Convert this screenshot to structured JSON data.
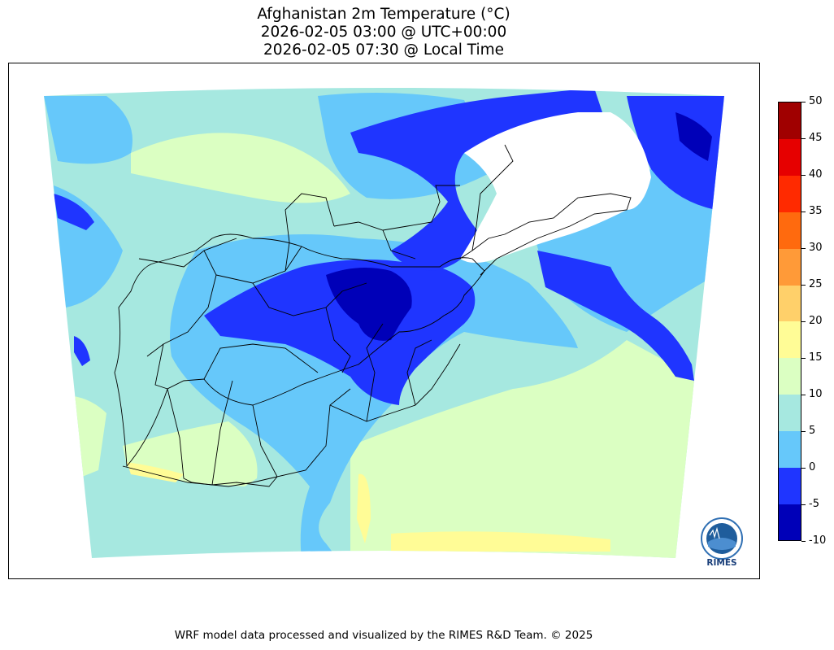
{
  "title": {
    "line1": "Afghanistan 2m Temperature (°C)",
    "line2": "2026-02-05 03:00 @ UTC+00:00",
    "line3": "2026-02-05 07:30 @ Local Time"
  },
  "colorbar": {
    "bins": [
      {
        "from": -10,
        "to": -5,
        "color": "#0000b8"
      },
      {
        "from": -5,
        "to": 0,
        "color": "#1f35ff"
      },
      {
        "from": 0,
        "to": 5,
        "color": "#66c8fa"
      },
      {
        "from": 5,
        "to": 10,
        "color": "#a6e8e0"
      },
      {
        "from": 10,
        "to": 15,
        "color": "#dbffc2"
      },
      {
        "from": 15,
        "to": 20,
        "color": "#fffc96"
      },
      {
        "from": 20,
        "to": 25,
        "color": "#ffd06a"
      },
      {
        "from": 25,
        "to": 30,
        "color": "#ff9a38"
      },
      {
        "from": 30,
        "to": 35,
        "color": "#ff6a0e"
      },
      {
        "from": 35,
        "to": 40,
        "color": "#ff2a00"
      },
      {
        "from": 40,
        "to": 45,
        "color": "#e60000"
      },
      {
        "from": 45,
        "to": 50,
        "color": "#a00000"
      }
    ],
    "ticks": [
      "50",
      "45",
      "40",
      "35",
      "30",
      "25",
      "20",
      "15",
      "10",
      "5",
      "0",
      "-5",
      "-10"
    ]
  },
  "logo": {
    "text": "RIMES"
  },
  "footer": "WRF model data processed and visualized by the RIMES R&D Team. © 2025"
}
